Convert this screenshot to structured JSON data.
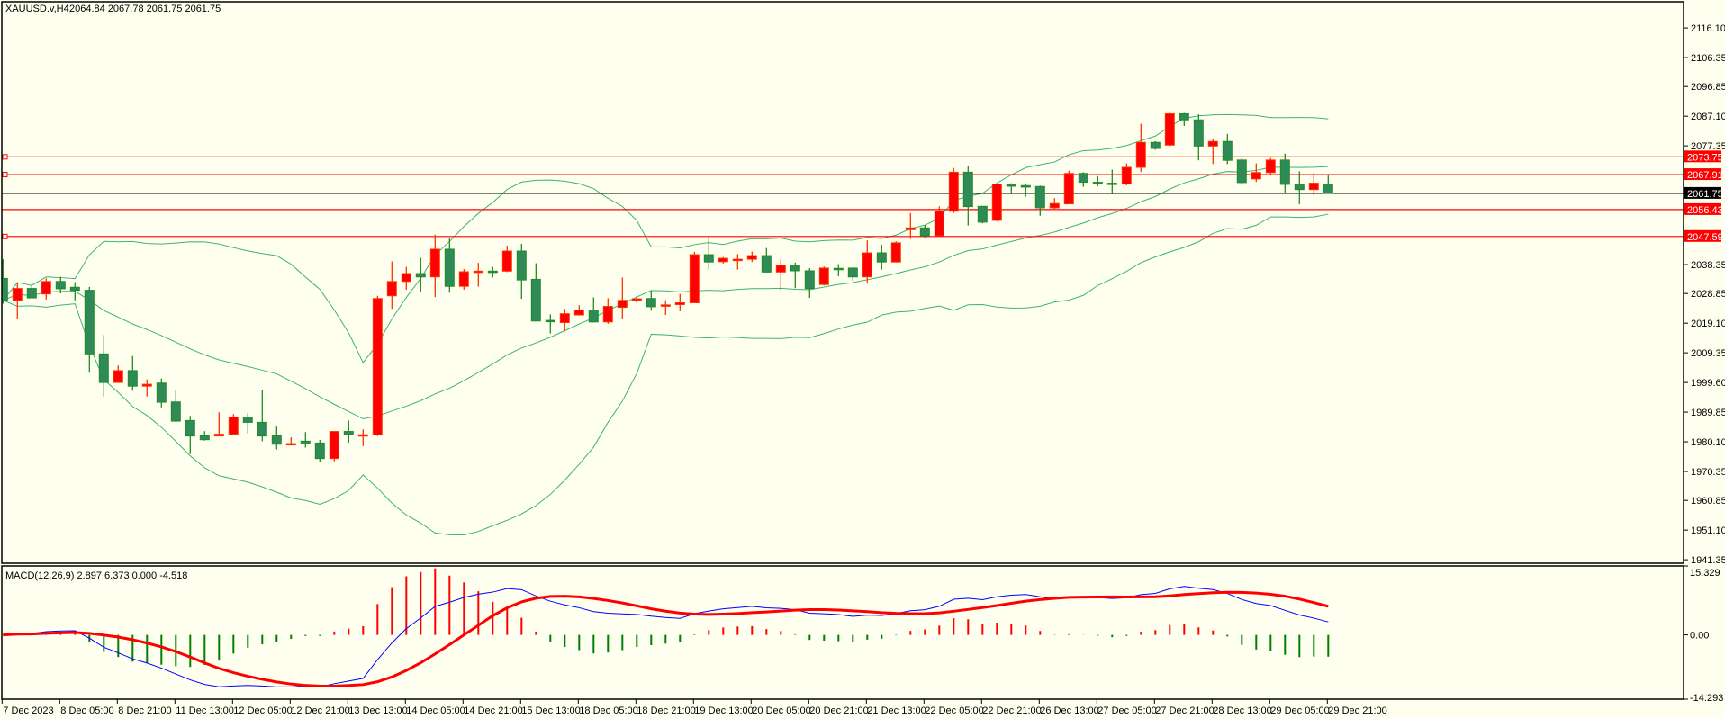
{
  "header": {
    "symbol": "XAUUSD.v,H4",
    "ohlc": "2064.84 2067.78 2061.75 2061.75"
  },
  "macd_header": "MACD(12,26,9) 2.897 6.373 0.000 -4.518",
  "colors": {
    "background": "#FFFFF0",
    "bull_body": "#FF0000",
    "bull_outline": "#FF3300",
    "bear_body": "#2E8B57",
    "bear_outline": "#228B22",
    "bands": "#3CB371",
    "macd_line": "#0000FF",
    "signal_line": "#FF0000",
    "hist_positive": "#FF0000",
    "hist_negative": "#008000",
    "level_line": "#FF0000",
    "current_price": "#000000"
  },
  "chart_data": [
    {
      "type": "candlestick",
      "symbol": "XAUUSD.v",
      "timeframe": "H4",
      "ylim": [
        1940.2,
        2124.7
      ],
      "grid": false,
      "ohlc_fields": [
        "open",
        "high",
        "low",
        "close"
      ],
      "ohlc": [
        [
          2033.8,
          2040.1,
          2025.5,
          2026.6
        ],
        [
          2026.6,
          2032.3,
          2020.4,
          2030.5
        ],
        [
          2030.5,
          2031.6,
          2027.4,
          2027.4
        ],
        [
          2028.7,
          2033.8,
          2026.9,
          2032.8
        ],
        [
          2032.8,
          2034.3,
          2028.9,
          2030.4
        ],
        [
          2030.9,
          2032.6,
          2026.6,
          2029.9
        ],
        [
          2029.9,
          2031.0,
          2002.8,
          2009.0
        ],
        [
          2009.0,
          2015.2,
          1995.0,
          1999.6
        ],
        [
          1999.6,
          2005.2,
          1999.6,
          2003.5
        ],
        [
          2003.5,
          2008.3,
          1996.9,
          1998.4
        ],
        [
          1998.4,
          2000.6,
          1995.0,
          1999.0
        ],
        [
          1999.4,
          2000.9,
          1991.4,
          1993.1
        ],
        [
          1993.2,
          1997.1,
          1986.9,
          1986.9
        ],
        [
          1987.1,
          1988.6,
          1976.1,
          1982.0
        ],
        [
          1982.1,
          1983.6,
          1980.5,
          1980.8
        ],
        [
          1982.0,
          1989.8,
          1982.0,
          1982.6
        ],
        [
          1982.6,
          1989.2,
          1982.2,
          1988.2
        ],
        [
          1988.2,
          1989.6,
          1982.9,
          1986.5
        ],
        [
          1986.5,
          1997.1,
          1980.3,
          1982.0
        ],
        [
          1982.1,
          1985.1,
          1977.6,
          1979.3
        ],
        [
          1979.5,
          1981.6,
          1979.3,
          1979.5
        ],
        [
          1980.3,
          1983.3,
          1978.2,
          1979.7
        ],
        [
          1979.7,
          1980.7,
          1973.5,
          1974.6
        ],
        [
          1974.6,
          1983.5,
          1973.7,
          1983.5
        ],
        [
          1983.5,
          1987.1,
          1979.8,
          1982.4
        ],
        [
          1982.4,
          1984.2,
          1978.7,
          1982.4
        ],
        [
          1982.4,
          2028.1,
          1982.0,
          2027.2
        ],
        [
          2028.1,
          2039.4,
          2023.8,
          2032.8
        ],
        [
          2032.8,
          2037.6,
          2030.1,
          2035.4
        ],
        [
          2035.4,
          2040.6,
          2029.5,
          2034.3
        ],
        [
          2034.3,
          2048.2,
          2027.7,
          2043.4
        ],
        [
          2043.4,
          2047.0,
          2029.1,
          2031.2
        ],
        [
          2031.2,
          2036.9,
          2030.1,
          2036.0
        ],
        [
          2036.2,
          2038.9,
          2031.1,
          2036.2
        ],
        [
          2036.2,
          2037.6,
          2034.1,
          2036.0
        ],
        [
          2036.2,
          2044.6,
          2035.9,
          2042.8
        ],
        [
          2042.8,
          2045.2,
          2027.1,
          2033.3
        ],
        [
          2033.5,
          2038.8,
          2019.8,
          2019.8
        ],
        [
          2020.0,
          2022.0,
          2015.7,
          2019.9
        ],
        [
          2019.3,
          2023.8,
          2016.4,
          2022.2
        ],
        [
          2021.8,
          2025.0,
          2021.7,
          2023.4
        ],
        [
          2023.4,
          2027.6,
          2019.3,
          2019.5
        ],
        [
          2019.5,
          2027.3,
          2018.9,
          2024.6
        ],
        [
          2024.3,
          2034.1,
          2020.4,
          2026.6
        ],
        [
          2026.6,
          2028.1,
          2025.7,
          2027.1
        ],
        [
          2027.2,
          2029.7,
          2023.2,
          2024.5
        ],
        [
          2025.1,
          2026.6,
          2021.8,
          2025.1
        ],
        [
          2025.2,
          2028.7,
          2023.0,
          2025.8
        ],
        [
          2025.8,
          2042.5,
          2025.8,
          2041.6
        ],
        [
          2041.6,
          2047.3,
          2036.7,
          2039.2
        ],
        [
          2039.3,
          2040.8,
          2038.7,
          2040.4
        ],
        [
          2040.1,
          2041.8,
          2036.7,
          2040.1
        ],
        [
          2040.1,
          2042.6,
          2039.2,
          2041.3
        ],
        [
          2041.3,
          2043.8,
          2035.7,
          2035.9
        ],
        [
          2035.9,
          2040.1,
          2029.9,
          2038.1
        ],
        [
          2038.1,
          2039.0,
          2030.6,
          2036.3
        ],
        [
          2036.3,
          2037.2,
          2027.4,
          2030.5
        ],
        [
          2031.8,
          2037.7,
          2031.5,
          2037.2
        ],
        [
          2037.1,
          2038.5,
          2034.5,
          2037.0
        ],
        [
          2037.2,
          2037.5,
          2033.0,
          2034.3
        ],
        [
          2034.3,
          2046.3,
          2032.1,
          2042.2
        ],
        [
          2042.2,
          2044.9,
          2036.7,
          2039.2
        ],
        [
          2039.2,
          2046.0,
          2039.0,
          2045.5
        ],
        [
          2049.8,
          2055.3,
          2046.8,
          2050.4
        ],
        [
          2050.4,
          2051.4,
          2047.2,
          2047.8
        ],
        [
          2047.8,
          2057.5,
          2047.5,
          2055.9
        ],
        [
          2055.9,
          2070.1,
          2055.3,
          2068.7
        ],
        [
          2068.7,
          2070.7,
          2051.2,
          2057.4
        ],
        [
          2057.5,
          2057.5,
          2051.9,
          2052.3
        ],
        [
          2052.9,
          2064.8,
          2052.6,
          2064.8
        ],
        [
          2064.8,
          2065.1,
          2061.4,
          2064.1
        ],
        [
          2064.3,
          2064.8,
          2060.7,
          2063.8
        ],
        [
          2064.0,
          2064.3,
          2054.4,
          2057.0
        ],
        [
          2057.0,
          2060.2,
          2056.3,
          2058.4
        ],
        [
          2058.3,
          2069.2,
          2058.3,
          2068.3
        ],
        [
          2068.3,
          2068.7,
          2063.9,
          2065.4
        ],
        [
          2065.4,
          2067.4,
          2064.1,
          2065.2
        ],
        [
          2065.1,
          2069.5,
          2061.4,
          2065.0
        ],
        [
          2064.8,
          2071.6,
          2064.4,
          2070.3
        ],
        [
          2070.3,
          2084.6,
          2068.8,
          2078.5
        ],
        [
          2078.5,
          2078.9,
          2076.1,
          2076.5
        ],
        [
          2077.6,
          2088.5,
          2077.0,
          2087.9
        ],
        [
          2087.9,
          2088.2,
          2083.9,
          2085.9
        ],
        [
          2085.9,
          2087.7,
          2072.6,
          2077.3
        ],
        [
          2077.3,
          2079.6,
          2071.4,
          2078.8
        ],
        [
          2078.8,
          2081.3,
          2071.4,
          2072.6
        ],
        [
          2072.7,
          2073.4,
          2064.6,
          2065.3
        ],
        [
          2066.5,
          2071.6,
          2065.5,
          2068.6
        ],
        [
          2068.6,
          2073.4,
          2067.7,
          2072.7
        ],
        [
          2072.7,
          2074.8,
          2061.8,
          2064.7
        ],
        [
          2064.8,
          2069.0,
          2058.2,
          2063.0
        ],
        [
          2063.0,
          2068.4,
          2061.1,
          2065.1
        ],
        [
          2064.84,
          2067.78,
          2061.75,
          2061.75
        ]
      ],
      "yticks": [
        "2116.10",
        "2106.35",
        "2096.85",
        "2087.10",
        "2077.35",
        "2038.35",
        "2028.85",
        "2019.10",
        "2009.35",
        "1999.60",
        "1989.85",
        "1980.10",
        "1970.35",
        "1960.85",
        "1951.10",
        "1941.35"
      ],
      "xticks": [
        {
          "bar": 0,
          "label": "7 Dec 2023"
        },
        {
          "bar": 4,
          "label": "8 Dec 05:00"
        },
        {
          "bar": 8,
          "label": "8 Dec 21:00"
        },
        {
          "bar": 12,
          "label": "11 Dec 13:00"
        },
        {
          "bar": 16,
          "label": "12 Dec 05:00"
        },
        {
          "bar": 20,
          "label": "12 Dec 21:00"
        },
        {
          "bar": 24,
          "label": "13 Dec 13:00"
        },
        {
          "bar": 28,
          "label": "14 Dec 05:00"
        },
        {
          "bar": 32,
          "label": "14 Dec 21:00"
        },
        {
          "bar": 36,
          "label": "15 Dec 13:00"
        },
        {
          "bar": 40,
          "label": "18 Dec 05:00"
        },
        {
          "bar": 44,
          "label": "18 Dec 21:00"
        },
        {
          "bar": 48,
          "label": "19 Dec 13:00"
        },
        {
          "bar": 52,
          "label": "20 Dec 05:00"
        },
        {
          "bar": 56,
          "label": "20 Dec 21:00"
        },
        {
          "bar": 60,
          "label": "21 Dec 13:00"
        },
        {
          "bar": 64,
          "label": "22 Dec 05:00"
        },
        {
          "bar": 68,
          "label": "22 Dec 21:00"
        },
        {
          "bar": 72,
          "label": "26 Dec 13:00"
        },
        {
          "bar": 76,
          "label": "27 Dec 05:00"
        },
        {
          "bar": 80,
          "label": "27 Dec 21:00"
        },
        {
          "bar": 84,
          "label": "28 Dec 13:00"
        },
        {
          "bar": 88,
          "label": "29 Dec 05:00"
        },
        {
          "bar": 92,
          "label": "29 Dec 21:00"
        }
      ],
      "hlines": [
        {
          "price": "2073.75",
          "color": "#FF0000",
          "marker": true
        },
        {
          "price": "2067.91",
          "color": "#FF0000",
          "marker": true
        },
        {
          "price": "2061.75",
          "color": "#000000",
          "marker": false
        },
        {
          "price": "2056.43",
          "color": "#FF0000",
          "marker": false
        },
        {
          "price": "2047.59",
          "color": "#FF0000",
          "marker": true
        }
      ],
      "indicator": {
        "name": "Bollinger Bands",
        "period": 20,
        "deviations": 2
      }
    },
    {
      "type": "line",
      "indicator": "MACD",
      "params": [
        12,
        26,
        9
      ],
      "values": {
        "macd": 2.897,
        "signal": 6.373,
        "zero": 0.0,
        "histogram": -4.518
      },
      "ylim": [
        -14.293,
        15.329
      ],
      "yticks": [
        "15.329",
        "0.00",
        "-14.293"
      ]
    }
  ]
}
